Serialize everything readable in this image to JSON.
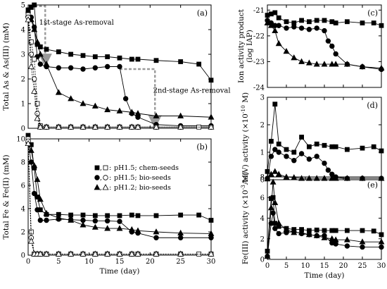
{
  "chart_data": [
    {
      "id": "a",
      "type": "line",
      "panel_label": "(a)",
      "xlabel": "",
      "ylabel": "Total As & As(III) (mM)",
      "xlim": [
        0,
        30
      ],
      "ylim": [
        0,
        5
      ],
      "xticks": [
        0,
        5,
        10,
        15,
        20,
        25,
        30
      ],
      "yticks": [
        0,
        1,
        2,
        3,
        4,
        5
      ],
      "series": [
        {
          "marker": "square",
          "fill": true,
          "dashed": false,
          "x": [
            0,
            0.5,
            1,
            1.5,
            2,
            3,
            5,
            7,
            9,
            11,
            13,
            15,
            17,
            18,
            21,
            25,
            28,
            30
          ],
          "y": [
            4.8,
            4.9,
            5.0,
            3.4,
            3.3,
            3.2,
            3.1,
            3.0,
            2.95,
            2.9,
            2.9,
            2.85,
            2.8,
            2.8,
            2.75,
            2.7,
            2.6,
            1.95
          ]
        },
        {
          "marker": "circle",
          "fill": true,
          "dashed": false,
          "x": [
            0,
            0.5,
            1,
            1.5,
            2,
            3,
            5,
            7,
            9,
            11,
            13,
            15,
            16,
            17,
            18,
            21,
            25,
            30
          ],
          "y": [
            4.7,
            4.5,
            4.1,
            2.9,
            2.6,
            2.5,
            2.45,
            2.45,
            2.4,
            2.45,
            2.5,
            2.5,
            1.2,
            0.6,
            0.45,
            0.15,
            0.1,
            0.1
          ]
        },
        {
          "marker": "triangle",
          "fill": true,
          "dashed": false,
          "x": [
            0,
            0.5,
            1,
            1.5,
            2,
            3,
            5,
            7,
            9,
            11,
            13,
            15,
            17,
            18,
            21,
            25,
            30
          ],
          "y": [
            4.6,
            4.4,
            4.0,
            3.5,
            3.0,
            2.6,
            1.45,
            1.2,
            1.0,
            0.9,
            0.75,
            0.7,
            0.65,
            0.6,
            0.5,
            0.5,
            0.45
          ]
        },
        {
          "marker": "square",
          "fill": false,
          "dashed": true,
          "x": [
            0,
            0.5,
            1,
            1.5,
            2,
            3,
            5,
            7,
            9,
            11,
            13,
            15,
            17,
            18,
            21,
            25,
            28,
            30
          ],
          "y": [
            4.6,
            3.5,
            2.8,
            1.0,
            0.1,
            0.05,
            0.05,
            0.05,
            0.05,
            0.05,
            0.05,
            0.05,
            0.05,
            0.05,
            0.05,
            0.05,
            0.05,
            0.05
          ]
        },
        {
          "marker": "circle",
          "fill": false,
          "dashed": true,
          "x": [
            0,
            0.5,
            1,
            1.5,
            2,
            3,
            5,
            7,
            9,
            11,
            13,
            15,
            17,
            18,
            21,
            25,
            30
          ],
          "y": [
            4.5,
            3.0,
            2.0,
            0.6,
            0.05,
            0.05,
            0.05,
            0.05,
            0.05,
            0.05,
            0.05,
            0.05,
            0.05,
            0.05,
            0.05,
            0.05,
            0.05
          ]
        },
        {
          "marker": "triangle",
          "fill": false,
          "dashed": true,
          "x": [
            0,
            0.5,
            1,
            1.5,
            2,
            3,
            5,
            7,
            9,
            11,
            13,
            15,
            17,
            18,
            21,
            25,
            30
          ],
          "y": [
            4.4,
            2.5,
            1.5,
            0.4,
            0.05,
            0.05,
            0.05,
            0.05,
            0.05,
            0.05,
            0.05,
            0.05,
            0.05,
            0.05,
            0.05,
            0.05,
            0.05
          ]
        }
      ],
      "annotations": [
        {
          "text": "1st-stage As-removal",
          "x": 1.8,
          "y": 4.2
        },
        {
          "text": "2nd-stage As-removal",
          "x": 20.5,
          "y": 1.45
        }
      ],
      "arrows": [
        {
          "path": [
            [
              0.3,
              4.95
            ],
            [
              2.8,
              4.95
            ],
            [
              2.8,
              2.75
            ]
          ]
        },
        {
          "path": [
            [
              15.0,
              2.4
            ],
            [
              20.8,
              2.4
            ],
            [
              20.8,
              0.25
            ]
          ]
        }
      ]
    },
    {
      "id": "b",
      "type": "line",
      "panel_label": "(b)",
      "xlabel": "Time (day)",
      "ylabel": "Total Fe & Fe(II) (mM)",
      "xlim": [
        0,
        30
      ],
      "ylim": [
        0,
        10
      ],
      "xticks": [
        0,
        5,
        10,
        15,
        20,
        25,
        30
      ],
      "xticklabels": [
        "0",
        "5",
        "10",
        "15",
        "20",
        "25",
        "30"
      ],
      "yticks": [
        0,
        2,
        4,
        6,
        8,
        10
      ],
      "legend": {
        "position": "right",
        "entries": [
          "pH1.5; chem-seeds",
          "pH1.5; bio-seeds",
          "pH1.2; bio-seeds"
        ],
        "separator": ":"
      },
      "series": [
        {
          "marker": "square",
          "fill": true,
          "dashed": false,
          "x": [
            0,
            0.5,
            1,
            1.5,
            2,
            3,
            5,
            7,
            9,
            11,
            13,
            15,
            17,
            18,
            21,
            25,
            28,
            30
          ],
          "y": [
            10.3,
            9.5,
            7.5,
            5.0,
            3.9,
            3.5,
            3.5,
            3.45,
            3.45,
            3.4,
            3.4,
            3.4,
            3.45,
            3.4,
            3.4,
            3.45,
            3.45,
            3.0
          ]
        },
        {
          "marker": "circle",
          "fill": true,
          "dashed": false,
          "x": [
            0,
            0.5,
            1,
            1.5,
            2,
            3,
            5,
            7,
            9,
            11,
            13,
            15,
            17,
            18,
            21,
            25,
            30
          ],
          "y": [
            9.7,
            8.0,
            5.3,
            3.9,
            3.0,
            3.0,
            3.1,
            3.05,
            3.0,
            2.95,
            2.95,
            2.9,
            2.0,
            1.9,
            1.5,
            1.5,
            1.5
          ]
        },
        {
          "marker": "triangle",
          "fill": true,
          "dashed": false,
          "x": [
            0,
            0.5,
            1,
            1.5,
            2,
            3,
            5,
            7,
            9,
            11,
            13,
            15,
            17,
            18,
            21,
            25,
            30
          ],
          "y": [
            9.6,
            9.0,
            7.7,
            6.5,
            4.8,
            3.6,
            3.2,
            3.0,
            2.6,
            2.4,
            2.3,
            2.3,
            2.2,
            2.1,
            2.0,
            1.9,
            1.85
          ]
        },
        {
          "marker": "square",
          "fill": false,
          "dashed": true,
          "x": [
            0,
            0.5,
            1,
            1.5,
            2,
            3,
            5,
            7,
            9,
            11,
            13,
            15,
            17,
            18,
            21,
            25,
            28,
            30
          ],
          "y": [
            10.0,
            2.0,
            0.1,
            0.1,
            0.1,
            0.1,
            0.1,
            0.1,
            0.1,
            0.1,
            0.1,
            0.1,
            0.1,
            0.1,
            0.1,
            0.1,
            0.1,
            0.1
          ]
        },
        {
          "marker": "circle",
          "fill": false,
          "dashed": true,
          "x": [
            0,
            0.5,
            1,
            1.5,
            2,
            3,
            5,
            7,
            9,
            11,
            13,
            15,
            17,
            18,
            21,
            25,
            30
          ],
          "y": [
            9.8,
            1.5,
            0.1,
            0.1,
            0.1,
            0.1,
            0.1,
            0.1,
            0.1,
            0.1,
            0.1,
            0.1,
            0.1,
            0.1,
            0.1,
            0.1,
            0.1
          ]
        },
        {
          "marker": "triangle",
          "fill": false,
          "dashed": true,
          "x": [
            0,
            0.5,
            1,
            1.5,
            2,
            3,
            5,
            7,
            9,
            11,
            13,
            15,
            17,
            18,
            21,
            25,
            30
          ],
          "y": [
            9.6,
            1.2,
            0.1,
            0.1,
            0.1,
            0.1,
            0.1,
            0.1,
            0.1,
            0.1,
            0.1,
            0.1,
            0.1,
            0.1,
            0.1,
            0.1,
            0.1
          ]
        }
      ]
    },
    {
      "id": "c",
      "type": "line",
      "panel_label": "(c)",
      "xlabel": "",
      "ylabel": "Ion activity product (log IAP)",
      "xlim": [
        0,
        30
      ],
      "ylim": [
        -24,
        -20.8
      ],
      "xticks": [
        0,
        5,
        10,
        15,
        20,
        25,
        30
      ],
      "yticks": [
        -24,
        -23,
        -22,
        -21
      ],
      "series": [
        {
          "marker": "square",
          "fill": true,
          "dashed": false,
          "x": [
            0,
            1,
            2,
            3,
            5,
            7,
            9,
            11,
            13,
            15,
            17,
            18,
            21,
            25,
            28,
            30
          ],
          "y": [
            -21.2,
            -21.15,
            -21.1,
            -21.3,
            -21.45,
            -21.5,
            -21.4,
            -21.45,
            -21.4,
            -21.4,
            -21.45,
            -21.5,
            -21.45,
            -21.5,
            -21.5,
            -21.6
          ]
        },
        {
          "marker": "circle",
          "fill": true,
          "dashed": false,
          "x": [
            0,
            1,
            2,
            3,
            5,
            7,
            9,
            11,
            13,
            15,
            16,
            17,
            18,
            21,
            25,
            30
          ],
          "y": [
            -21.4,
            -21.5,
            -21.6,
            -21.6,
            -21.7,
            -21.65,
            -21.7,
            -21.75,
            -21.7,
            -21.8,
            -22.2,
            -22.4,
            -22.7,
            -23.1,
            -23.2,
            -23.3
          ]
        },
        {
          "marker": "triangle",
          "fill": true,
          "dashed": false,
          "x": [
            0,
            1,
            2,
            3,
            5,
            7,
            9,
            11,
            13,
            15,
            17,
            18,
            21,
            25,
            30
          ],
          "y": [
            -21.5,
            -21.6,
            -21.8,
            -22.3,
            -22.6,
            -22.85,
            -23.0,
            -23.05,
            -23.1,
            -23.1,
            -23.1,
            -23.1,
            -23.1,
            -23.2,
            -23.25
          ]
        }
      ]
    },
    {
      "id": "d",
      "type": "line",
      "panel_label": "(d)",
      "xlabel": "",
      "ylabel": "As(V) activity (×10^-10 M)",
      "ylabel_base": "As(V) activity (×10",
      "ylabel_exp": "-10",
      "ylabel_tail": " M)",
      "xlim": [
        0,
        30
      ],
      "ylim": [
        0,
        3
      ],
      "xticks": [
        0,
        5,
        10,
        15,
        20,
        25,
        30
      ],
      "yticks": [
        0,
        1,
        2,
        3
      ],
      "series": [
        {
          "marker": "square",
          "fill": true,
          "dashed": false,
          "x": [
            0,
            1,
            2,
            3,
            5,
            7,
            9,
            11,
            13,
            15,
            17,
            18,
            21,
            25,
            28,
            30
          ],
          "y": [
            0.3,
            1.4,
            2.75,
            1.3,
            1.1,
            1.0,
            1.55,
            1.2,
            1.3,
            1.25,
            1.2,
            1.2,
            1.1,
            1.15,
            1.2,
            1.05
          ]
        },
        {
          "marker": "circle",
          "fill": true,
          "dashed": false,
          "x": [
            0,
            1,
            2,
            3,
            5,
            7,
            9,
            11,
            13,
            15,
            16,
            17,
            18,
            21,
            25,
            30
          ],
          "y": [
            0.05,
            0.85,
            1.1,
            1.0,
            0.85,
            0.7,
            0.95,
            0.75,
            0.85,
            0.6,
            0.35,
            0.2,
            0.1,
            0.05,
            0.05,
            0.05
          ]
        },
        {
          "marker": "triangle",
          "fill": true,
          "dashed": false,
          "x": [
            0,
            1,
            2,
            3,
            5,
            7,
            9,
            11,
            13,
            15,
            17,
            18,
            21,
            25,
            30
          ],
          "y": [
            0.03,
            0.2,
            0.3,
            0.2,
            0.1,
            0.08,
            0.05,
            0.05,
            0.05,
            0.05,
            0.05,
            0.05,
            0.05,
            0.05,
            0.05
          ]
        }
      ]
    },
    {
      "id": "e",
      "type": "line",
      "panel_label": "(e)",
      "xlabel": "Time (day)",
      "ylabel": "Fe(III) activity (×10^-3 M)",
      "ylabel_base": "Fe(III) activity (×10",
      "ylabel_exp": "-3",
      "ylabel_tail": " M)",
      "xlim": [
        0,
        30
      ],
      "ylim": [
        0,
        8
      ],
      "xticks": [
        0,
        5,
        10,
        15,
        20,
        25,
        30
      ],
      "xticklabels": [
        "0",
        "5",
        "10",
        "15",
        "20",
        "25",
        "30"
      ],
      "yticks": [
        0,
        2,
        4,
        6,
        8
      ],
      "series": [
        {
          "marker": "square",
          "fill": true,
          "dashed": false,
          "x": [
            0,
            1,
            1.5,
            2,
            3,
            5,
            7,
            9,
            11,
            13,
            15,
            17,
            18,
            21,
            25,
            28,
            30
          ],
          "y": [
            0.8,
            5.9,
            6.0,
            3.5,
            3.2,
            3.0,
            2.9,
            2.9,
            2.8,
            2.85,
            2.8,
            2.8,
            2.8,
            2.8,
            2.8,
            2.75,
            2.4
          ]
        },
        {
          "marker": "circle",
          "fill": true,
          "dashed": false,
          "x": [
            0,
            1,
            1.5,
            2,
            3,
            5,
            7,
            9,
            11,
            13,
            15,
            17,
            18,
            21,
            25,
            30
          ],
          "y": [
            0.3,
            3.5,
            4.5,
            3.0,
            2.5,
            2.6,
            2.7,
            2.5,
            2.4,
            2.3,
            2.3,
            1.6,
            1.5,
            1.3,
            1.2,
            1.2
          ]
        },
        {
          "marker": "triangle",
          "fill": true,
          "dashed": false,
          "x": [
            0,
            1,
            1.5,
            2,
            3,
            5,
            7,
            9,
            11,
            13,
            15,
            17,
            18,
            21,
            25,
            30
          ],
          "y": [
            0.3,
            5.0,
            7.5,
            5.5,
            3.5,
            2.9,
            2.6,
            2.6,
            2.4,
            2.3,
            2.1,
            2.0,
            1.9,
            1.9,
            1.7,
            1.7
          ]
        }
      ]
    }
  ]
}
